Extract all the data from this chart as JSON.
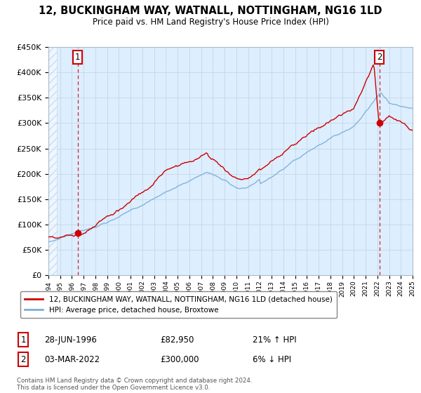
{
  "title": "12, BUCKINGHAM WAY, WATNALL, NOTTINGHAM, NG16 1LD",
  "subtitle": "Price paid vs. HM Land Registry's House Price Index (HPI)",
  "ylim": [
    0,
    450000
  ],
  "yticks": [
    0,
    50000,
    100000,
    150000,
    200000,
    250000,
    300000,
    350000,
    400000,
    450000
  ],
  "ytick_labels": [
    "£0",
    "£50K",
    "£100K",
    "£150K",
    "£200K",
    "£250K",
    "£300K",
    "£350K",
    "£400K",
    "£450K"
  ],
  "x_start_year": 1994,
  "x_end_year": 2025,
  "sale1_year": 1996.49,
  "sale1_price": 82950,
  "sale1_label": "1",
  "sale1_info": "28-JUN-1996",
  "sale1_price_str": "£82,950",
  "sale1_hpi": "21% ↑ HPI",
  "sale2_year": 2022.17,
  "sale2_price": 300000,
  "sale2_label": "2",
  "sale2_info": "03-MAR-2022",
  "sale2_price_str": "£300,000",
  "sale2_hpi": "6% ↓ HPI",
  "property_line_color": "#cc0000",
  "hpi_line_color": "#7aaed6",
  "grid_color": "#c8daea",
  "bg_color": "#ddeeff",
  "legend_property": "12, BUCKINGHAM WAY, WATNALL, NOTTINGHAM, NG16 1LD (detached house)",
  "legend_hpi": "HPI: Average price, detached house, Broxtowe",
  "footer": "Contains HM Land Registry data © Crown copyright and database right 2024.\nThis data is licensed under the Open Government Licence v3.0."
}
